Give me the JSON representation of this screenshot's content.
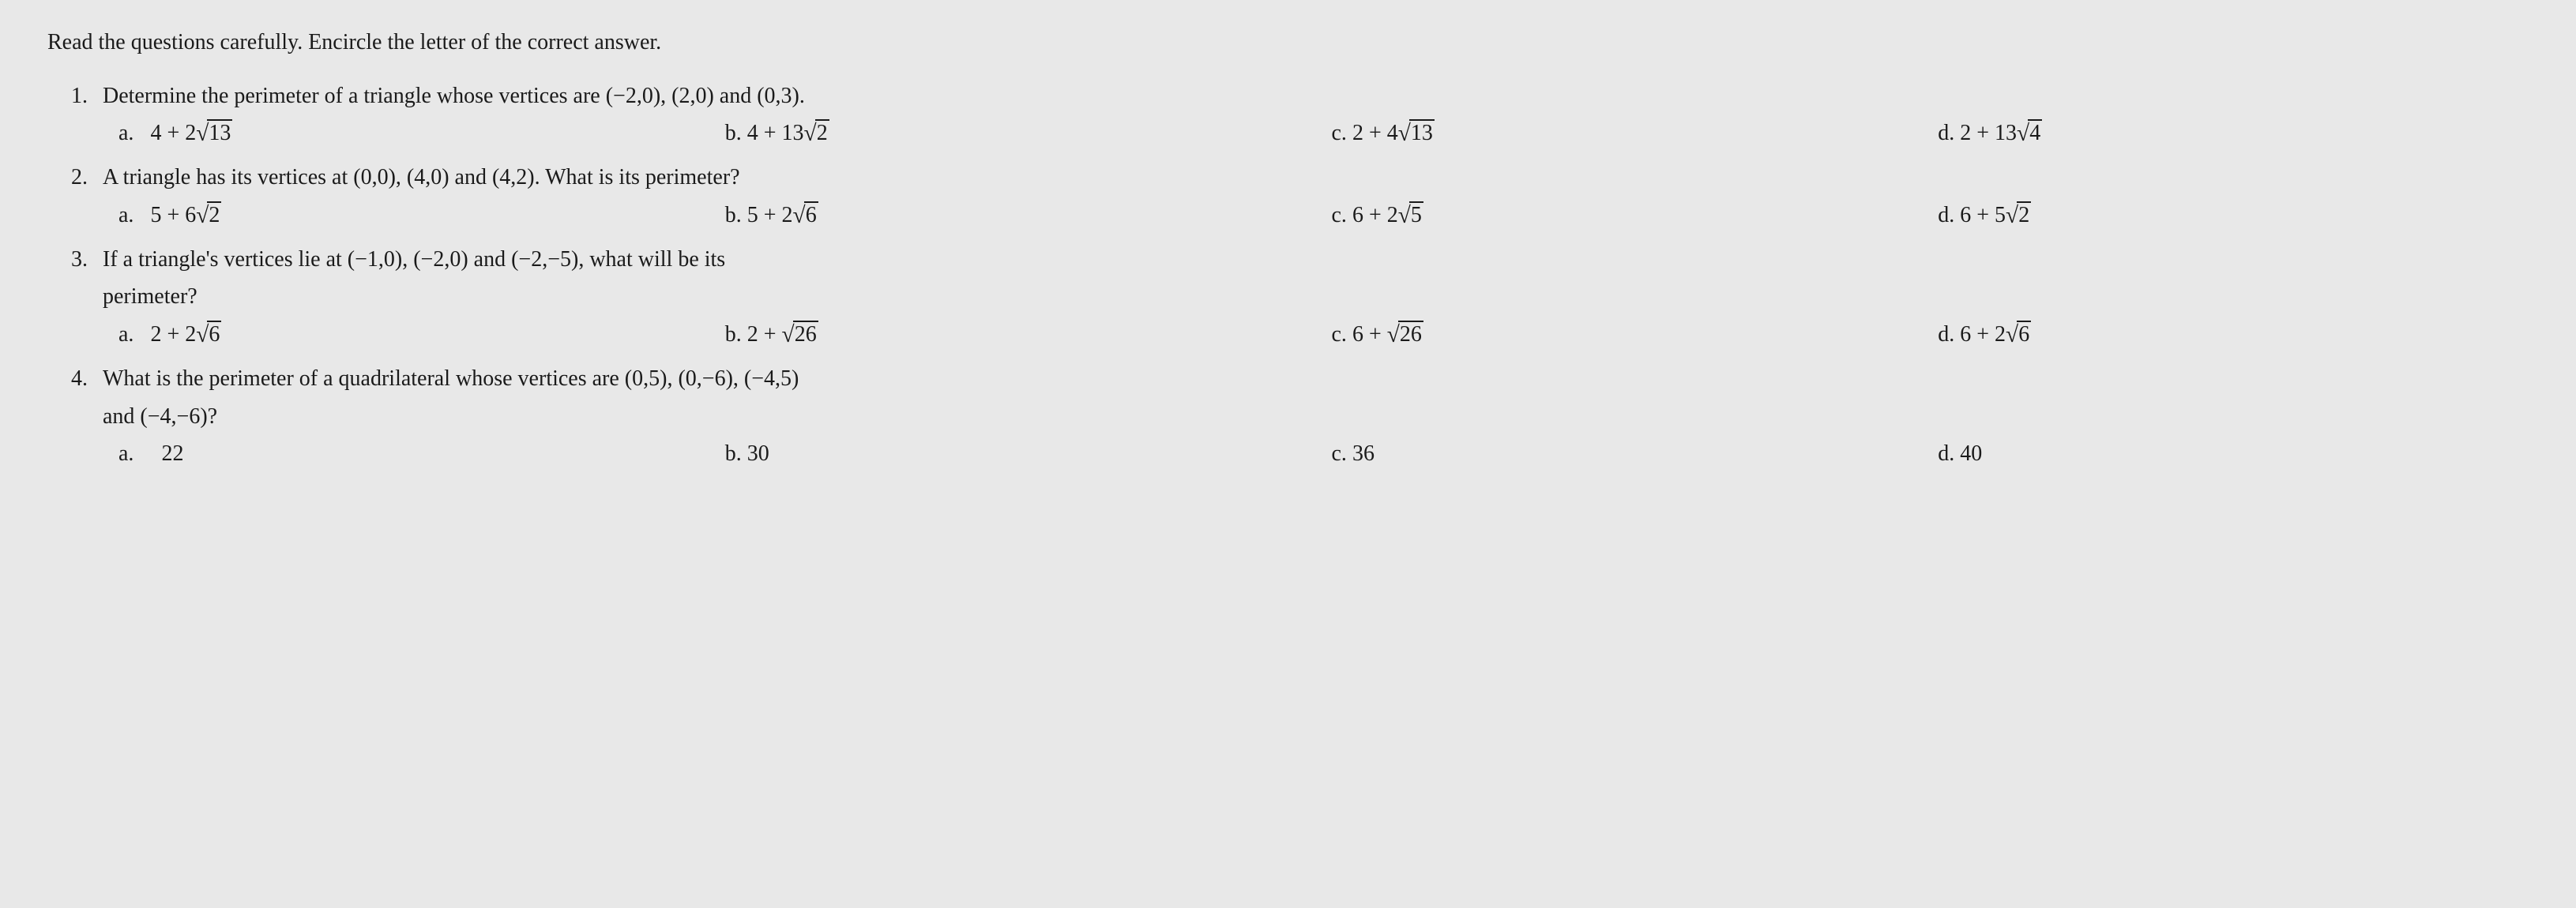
{
  "instruction": "Read the questions carefully. Encircle the letter of the correct answer.",
  "questions": [
    {
      "number": "1.",
      "text_parts": [
        "Determine the perimeter of a triangle whose vertices are (−2,0), (2,0) and (0,3)."
      ],
      "choices": [
        {
          "letter": "a.",
          "prefix": "4 + 2",
          "radicand": "13",
          "suffix": ""
        },
        {
          "letter": "b.",
          "prefix": "4 + 13",
          "radicand": "2",
          "suffix": ""
        },
        {
          "letter": "c.",
          "prefix": "2 + 4",
          "radicand": "13",
          "suffix": ""
        },
        {
          "letter": "d.",
          "prefix": "2 + 13",
          "radicand": "4",
          "suffix": ""
        }
      ]
    },
    {
      "number": "2.",
      "text_parts": [
        "A triangle has its vertices at (0,0), (4,0) and (4,2). What is its perimeter?"
      ],
      "choices": [
        {
          "letter": "a.",
          "prefix": "5 + 6",
          "radicand": "2",
          "suffix": ""
        },
        {
          "letter": "b.",
          "prefix": "5 + 2",
          "radicand": "6",
          "suffix": ""
        },
        {
          "letter": "c.",
          "prefix": "6 + 2",
          "radicand": "5",
          "suffix": ""
        },
        {
          "letter": "d.",
          "prefix": "6 + 5",
          "radicand": "2",
          "suffix": ""
        }
      ]
    },
    {
      "number": "3.",
      "text_parts": [
        "If a triangle's vertices lie at (−1,0), (−2,0) and (−2,−5), what will be its",
        "perimeter?"
      ],
      "choices": [
        {
          "letter": "a.",
          "prefix": "2 + 2",
          "radicand": "6",
          "suffix": ""
        },
        {
          "letter": "b.",
          "prefix": "2 + ",
          "radicand": "26",
          "suffix": ""
        },
        {
          "letter": "c.",
          "prefix": "6 + ",
          "radicand": "26",
          "suffix": ""
        },
        {
          "letter": "d.",
          "prefix": "6 + 2",
          "radicand": "6",
          "suffix": ""
        }
      ]
    },
    {
      "number": "4.",
      "text_parts": [
        "What is the perimeter of a quadrilateral whose vertices are (0,5), (0,−6), (−4,5)",
        "and (−4,−6)?"
      ],
      "choices": [
        {
          "letter": "a.",
          "prefix": "22",
          "radicand": "",
          "suffix": ""
        },
        {
          "letter": "b.",
          "prefix": "30",
          "radicand": "",
          "suffix": ""
        },
        {
          "letter": "c.",
          "prefix": "36",
          "radicand": "",
          "suffix": ""
        },
        {
          "letter": "d.",
          "prefix": "40",
          "radicand": "",
          "suffix": ""
        }
      ]
    }
  ],
  "style": {
    "font_family": "Times New Roman",
    "font_size_pt": 21,
    "text_color": "#1a1a1a",
    "background_color": "#e8e8e8"
  }
}
